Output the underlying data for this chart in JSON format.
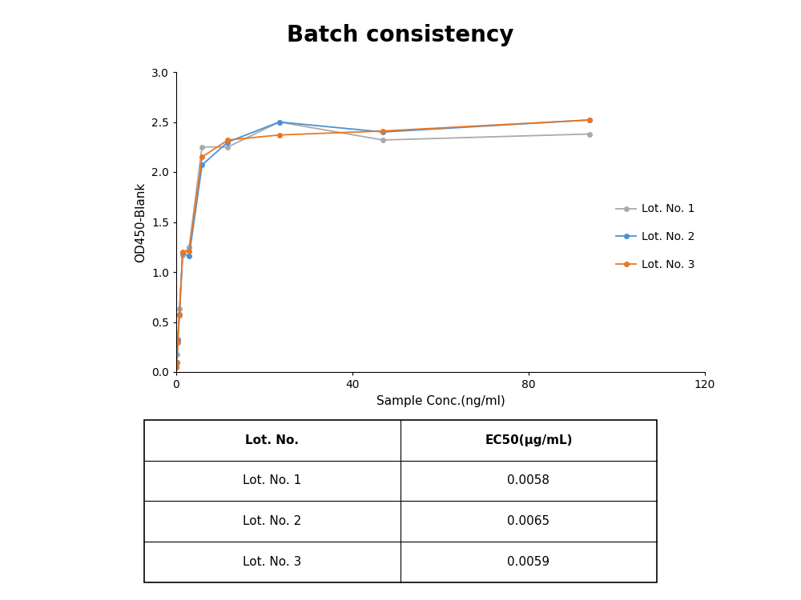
{
  "title": "Batch consistency",
  "xlabel": "Sample Conc.(ng/ml)",
  "ylabel": "OD450-Blank",
  "xlim": [
    0,
    120
  ],
  "ylim": [
    0.0,
    3.0
  ],
  "xticks": [
    0,
    40,
    80,
    120
  ],
  "yticks": [
    0.0,
    0.5,
    1.0,
    1.5,
    2.0,
    2.5,
    3.0
  ],
  "lot1": {
    "x": [
      0.09,
      0.18,
      0.36,
      0.73,
      1.46,
      2.93,
      5.86,
      11.72,
      23.4,
      46.9,
      93.75
    ],
    "y": [
      0.08,
      0.18,
      0.33,
      0.63,
      1.17,
      1.25,
      2.25,
      2.25,
      2.5,
      2.32,
      2.38
    ],
    "color": "#aaaaaa",
    "label": "Lot. No. 1"
  },
  "lot2": {
    "x": [
      0.09,
      0.18,
      0.36,
      0.73,
      1.46,
      2.93,
      5.86,
      11.72,
      23.4,
      46.9,
      93.75
    ],
    "y": [
      0.05,
      0.1,
      0.32,
      0.58,
      1.19,
      1.16,
      2.07,
      2.3,
      2.5,
      2.4,
      2.52
    ],
    "color": "#4a90d9",
    "label": "Lot. No. 2"
  },
  "lot3": {
    "x": [
      0.09,
      0.18,
      0.36,
      0.73,
      1.46,
      2.93,
      5.86,
      11.72,
      23.4,
      46.9,
      93.75
    ],
    "y": [
      0.05,
      0.1,
      0.3,
      0.57,
      1.2,
      1.21,
      2.15,
      2.32,
      2.37,
      2.41,
      2.52
    ],
    "color": "#e87722",
    "label": "Lot. No. 3"
  },
  "table_headers": [
    "Lot. No.",
    "EC50(μg/mL)"
  ],
  "table_rows": [
    [
      "Lot. No. 1",
      "0.0058"
    ],
    [
      "Lot. No. 2",
      "0.0065"
    ],
    [
      "Lot. No. 3",
      "0.0059"
    ]
  ],
  "background_color": "#ffffff",
  "title_fontsize": 20,
  "axis_label_fontsize": 11,
  "tick_fontsize": 10,
  "legend_fontsize": 10,
  "table_fontsize": 11
}
